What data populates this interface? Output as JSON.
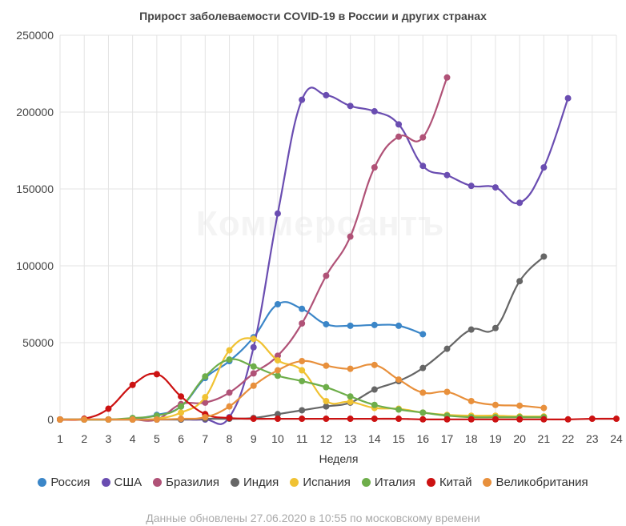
{
  "chart_data": {
    "type": "line",
    "title": "Прирост заболеваемости COVID-19 в России и других странах",
    "xlabel": "Неделя",
    "ylabel": "",
    "x": [
      1,
      2,
      3,
      4,
      5,
      6,
      7,
      8,
      9,
      10,
      11,
      12,
      13,
      14,
      15,
      16,
      17,
      18,
      19,
      20,
      21,
      22,
      23,
      24
    ],
    "ylim": [
      0,
      250000
    ],
    "yticks": [
      "0",
      "50000",
      "100000",
      "150000",
      "200000",
      "250000"
    ],
    "grid": true,
    "legend_position": "bottom",
    "series": [
      {
        "name": "Россия",
        "color": "#3b86c8",
        "x": [
          1,
          2,
          3,
          4,
          5,
          6,
          7,
          8,
          9,
          10,
          11,
          12,
          13,
          14,
          15,
          16
        ],
        "values": [
          0,
          0,
          0,
          500,
          3000,
          8500,
          27000,
          38000,
          53500,
          75000,
          72000,
          62000,
          61000,
          61500,
          61000,
          55500
        ]
      },
      {
        "name": "США",
        "color": "#6a4db1",
        "x": [
          1,
          2,
          3,
          4,
          5,
          6,
          7,
          8,
          9,
          10,
          11,
          12,
          13,
          14,
          15,
          16,
          17,
          18,
          19,
          20,
          21,
          22
        ],
        "values": [
          0,
          0,
          0,
          0,
          0,
          0,
          0,
          1500,
          47000,
          134000,
          208000,
          211000,
          204000,
          200500,
          192000,
          165000,
          159000,
          152000,
          151000,
          141000,
          164000,
          209000
        ]
      },
      {
        "name": "Бразилия",
        "color": "#b05277",
        "x": [
          1,
          2,
          3,
          4,
          5,
          6,
          7,
          8,
          9,
          10,
          11,
          12,
          13,
          14,
          15,
          16,
          17
        ],
        "values": [
          0,
          0,
          0,
          0,
          0,
          10000,
          11000,
          17500,
          30000,
          41500,
          62500,
          93500,
          119000,
          164000,
          184000,
          183500,
          222500
        ]
      },
      {
        "name": "Индия",
        "color": "#666666",
        "x": [
          1,
          2,
          3,
          4,
          5,
          6,
          7,
          8,
          9,
          10,
          11,
          12,
          13,
          14,
          15,
          16,
          17,
          18,
          19,
          20,
          21
        ],
        "values": [
          0,
          0,
          0,
          0,
          0,
          0,
          500,
          500,
          1000,
          3500,
          6000,
          8500,
          11000,
          19500,
          25000,
          33500,
          46000,
          58500,
          59500,
          90000,
          106000
        ]
      },
      {
        "name": "Испания",
        "color": "#f0c233",
        "x": [
          1,
          2,
          3,
          4,
          5,
          6,
          7,
          8,
          9,
          10,
          11,
          12,
          13,
          14,
          15,
          16,
          17,
          18,
          19,
          20,
          21
        ],
        "values": [
          0,
          0,
          0,
          0,
          500,
          4500,
          14500,
          45000,
          52500,
          38500,
          32000,
          12000,
          11500,
          7500,
          7000,
          4500,
          3000,
          2500,
          2500,
          2000,
          2000
        ]
      },
      {
        "name": "Италия",
        "color": "#6eae4a",
        "x": [
          1,
          2,
          3,
          4,
          5,
          6,
          7,
          8,
          9,
          10,
          11,
          12,
          13,
          14,
          15,
          16,
          17,
          18,
          19,
          20,
          21
        ],
        "values": [
          0,
          0,
          0,
          1000,
          2500,
          8500,
          28000,
          39000,
          34500,
          28500,
          25000,
          21000,
          15000,
          9500,
          6500,
          4500,
          2500,
          1500,
          1500,
          1500,
          1500
        ]
      },
      {
        "name": "Китай",
        "color": "#cc1212",
        "x": [
          1,
          2,
          3,
          4,
          5,
          6,
          7,
          8,
          9,
          10,
          11,
          12,
          13,
          14,
          15,
          16,
          17,
          18,
          19,
          20,
          21,
          22,
          23,
          24
        ],
        "values": [
          0,
          500,
          7000,
          22500,
          29500,
          15000,
          3500,
          1000,
          500,
          500,
          500,
          500,
          500,
          500,
          500,
          100,
          100,
          100,
          100,
          100,
          100,
          100,
          500,
          500
        ]
      },
      {
        "name": "Великобритания",
        "color": "#e8903c",
        "x": [
          1,
          2,
          3,
          4,
          5,
          6,
          7,
          8,
          9,
          10,
          11,
          12,
          13,
          14,
          15,
          16,
          17,
          18,
          19,
          20,
          21
        ],
        "values": [
          0,
          0,
          0,
          0,
          0,
          500,
          1500,
          8500,
          22000,
          32000,
          38000,
          35000,
          33000,
          35500,
          26000,
          17500,
          18000,
          12000,
          9500,
          9000,
          7500
        ]
      }
    ],
    "watermark": "Коммерсантъ",
    "footnote": "Данные обновлены 27.06.2020 в 10:55 по московскому времени"
  }
}
